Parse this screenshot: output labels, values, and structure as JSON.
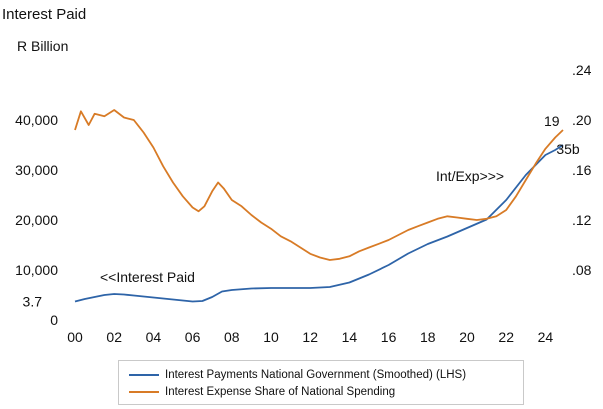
{
  "chart_data": {
    "type": "line",
    "title": "Interest Paid",
    "ylabel_left": "R Billion",
    "x_tick_labels": [
      "00",
      "02",
      "04",
      "06",
      "08",
      "10",
      "12",
      "14",
      "16",
      "18",
      "20",
      "22",
      "24"
    ],
    "x_range": [
      2000,
      2025
    ],
    "y_left": {
      "range": [
        0,
        50000
      ],
      "ticks": [
        0,
        10000,
        20000,
        30000,
        40000
      ],
      "tick_labels": [
        "0",
        "10,000",
        "20,000",
        "30,000",
        "40,000"
      ],
      "extra_label": "3.7"
    },
    "y_right": {
      "range": [
        0.04,
        0.24
      ],
      "ticks": [
        0.08,
        0.12,
        0.16,
        0.2,
        0.24
      ],
      "tick_labels": [
        ".08",
        ".12",
        ".16",
        ".20",
        ".24"
      ]
    },
    "series": [
      {
        "name": "Interest Payments National Government (Smoothed) (LHS)",
        "axis": "left",
        "color": "#2e64a8",
        "x": [
          2000,
          2000.5,
          2001,
          2001.5,
          2002,
          2002.5,
          2003,
          2003.5,
          2004,
          2004.5,
          2005,
          2005.5,
          2006,
          2006.5,
          2007,
          2007.5,
          2008,
          2009,
          2010,
          2011,
          2012,
          2013,
          2014,
          2015,
          2016,
          2017,
          2018,
          2019,
          2020,
          2021,
          2022,
          2023,
          2024,
          2024.5,
          2024.9
        ],
        "values": [
          3700,
          4200,
          4600,
          5000,
          5200,
          5100,
          4900,
          4700,
          4500,
          4300,
          4100,
          3900,
          3700,
          3800,
          4600,
          5700,
          6000,
          6300,
          6400,
          6400,
          6400,
          6600,
          7500,
          9100,
          11000,
          13300,
          15200,
          16700,
          18400,
          20100,
          24000,
          29000,
          33000,
          34000,
          35000
        ]
      },
      {
        "name": "Interest Expense Share of National Spending",
        "axis": "right",
        "color": "#d87b26",
        "x": [
          2000,
          2000.3,
          2000.7,
          2001,
          2001.5,
          2002,
          2002.5,
          2003,
          2003.5,
          2004,
          2004.5,
          2005,
          2005.5,
          2006,
          2006.3,
          2006.6,
          2007,
          2007.3,
          2007.6,
          2008,
          2008.5,
          2009,
          2009.5,
          2010,
          2010.5,
          2011,
          2011.5,
          2012,
          2012.5,
          2013,
          2013.5,
          2014,
          2014.5,
          2015,
          2015.5,
          2016,
          2016.5,
          2017,
          2017.5,
          2018,
          2018.5,
          2019,
          2019.5,
          2020,
          2020.5,
          2021,
          2021.5,
          2022,
          2022.5,
          2023,
          2023.5,
          2024,
          2024.5,
          2024.9
        ],
        "values": [
          0.192,
          0.207,
          0.196,
          0.205,
          0.203,
          0.208,
          0.202,
          0.2,
          0.19,
          0.178,
          0.163,
          0.15,
          0.139,
          0.13,
          0.127,
          0.131,
          0.143,
          0.15,
          0.145,
          0.136,
          0.131,
          0.124,
          0.118,
          0.113,
          0.107,
          0.103,
          0.098,
          0.093,
          0.09,
          0.088,
          0.089,
          0.091,
          0.095,
          0.098,
          0.101,
          0.104,
          0.108,
          0.112,
          0.115,
          0.118,
          0.121,
          0.123,
          0.122,
          0.121,
          0.12,
          0.121,
          0.123,
          0.128,
          0.139,
          0.152,
          0.165,
          0.177,
          0.186,
          0.192
        ]
      }
    ],
    "annotations": [
      {
        "text": "<<Interest Paid"
      },
      {
        "text": "Int/Exp>>>"
      },
      {
        "text": "19"
      },
      {
        "text": "35b"
      }
    ],
    "grid": false,
    "legend_position": "bottom"
  }
}
